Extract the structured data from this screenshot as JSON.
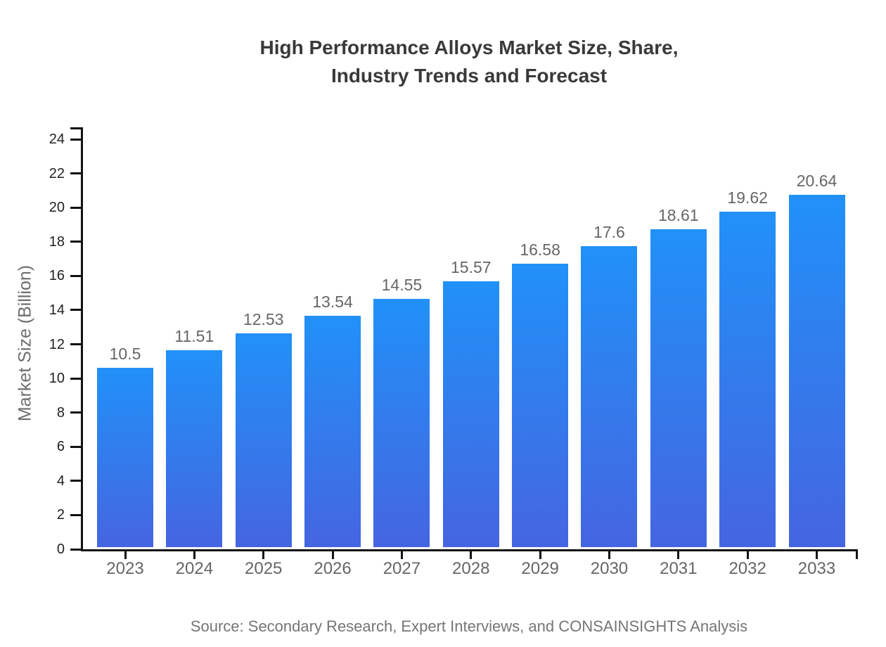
{
  "title": {
    "line1": "High Performance Alloys Market Size, Share,",
    "line2": "Industry Trends and Forecast"
  },
  "source_note": "Source: Secondary Research, Expert Interviews, and CONSAINSIGHTS Analysis",
  "chart_data": {
    "type": "bar",
    "title": "High Performance Alloys Market Size, Share, Industry Trends and Forecast",
    "categories": [
      "2023",
      "2024",
      "2025",
      "2026",
      "2027",
      "2028",
      "2029",
      "2030",
      "2031",
      "2032",
      "2033"
    ],
    "values": [
      10.5,
      11.51,
      12.53,
      13.54,
      14.55,
      15.57,
      16.58,
      17.6,
      18.61,
      19.62,
      20.64
    ],
    "value_labels": [
      "10.5",
      "11.51",
      "12.53",
      "13.54",
      "14.55",
      "15.57",
      "16.58",
      "17.6",
      "18.61",
      "19.62",
      "20.64"
    ],
    "xlabel": "",
    "ylabel": "Market Size (Billion)",
    "ylim": [
      0,
      24
    ],
    "ytick_step": 2,
    "grid": false,
    "legend": false,
    "colors": {
      "bar_gradient_top": "#2191f8",
      "bar_gradient_bottom": "#4565e0",
      "axis": "#111111",
      "y_tick_label": "#222222",
      "x_tick_label": "#666666",
      "value_label": "#666666",
      "ylabel": "#6e6e6e",
      "title": "#393939",
      "source": "#757575"
    }
  }
}
